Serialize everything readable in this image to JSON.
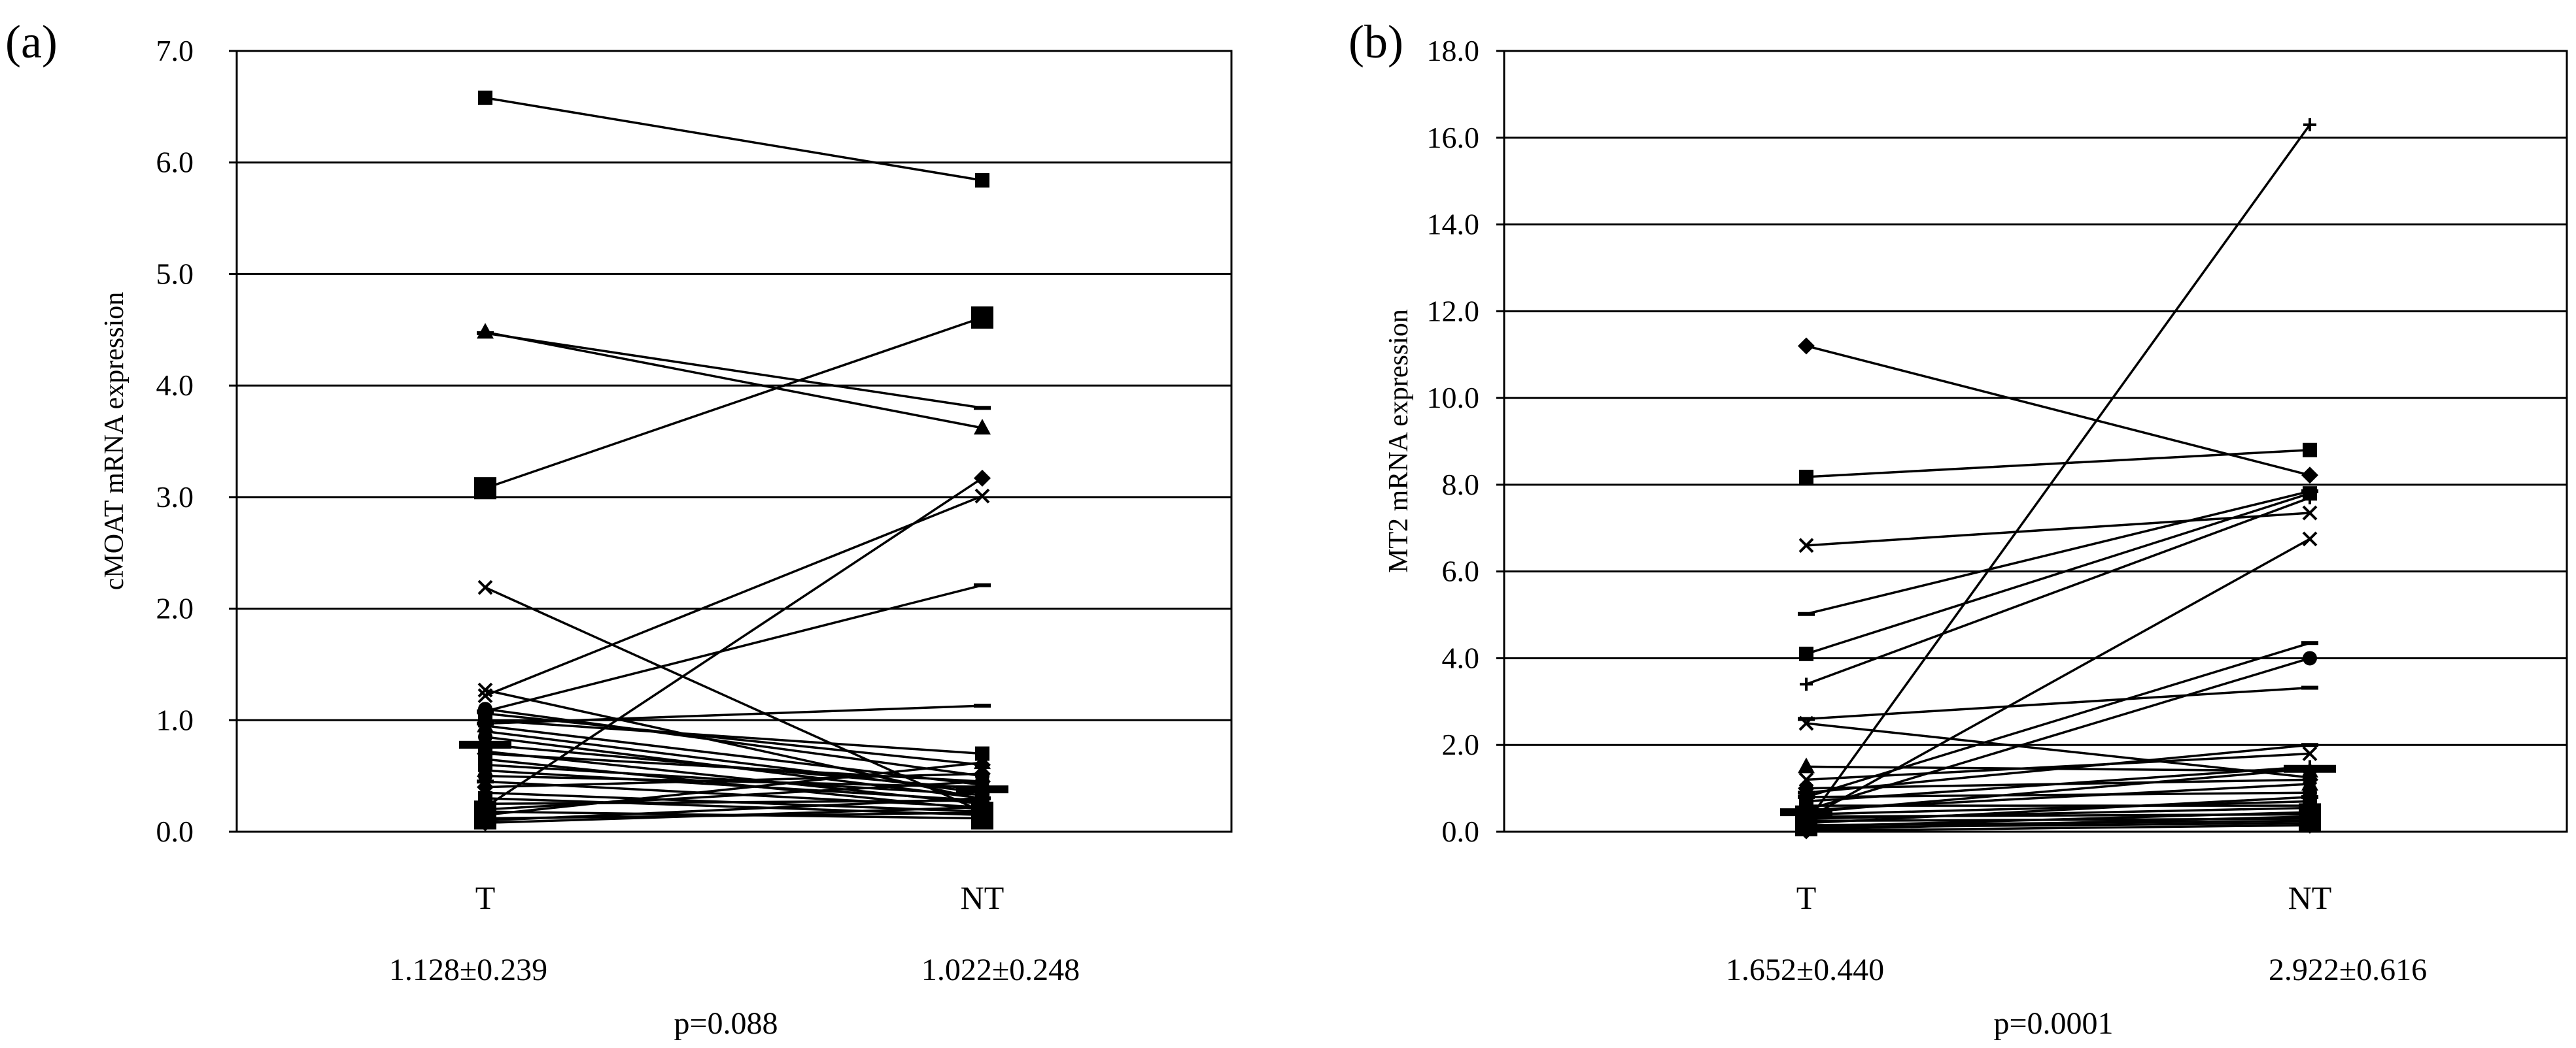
{
  "chart_data": [
    {
      "type": "line",
      "panel_label": "(a)",
      "ylabel": "cMOAT mRNA expression",
      "categories": [
        "T",
        "NT"
      ],
      "ylim": [
        0,
        7
      ],
      "yticks": [
        "0.0",
        "1.0",
        "2.0",
        "3.0",
        "4.0",
        "5.0",
        "6.0",
        "7.0"
      ],
      "grid": true,
      "stats": [
        "1.128±0.239",
        "1.022±0.248"
      ],
      "pvalue": "p=0.088",
      "series": [
        {
          "values": [
            6.58,
            5.84
          ],
          "marker": "square"
        },
        {
          "values": [
            4.47,
            3.8
          ],
          "marker": "dash"
        },
        {
          "values": [
            4.48,
            3.62
          ],
          "marker": "triangle"
        },
        {
          "values": [
            3.08,
            4.61
          ],
          "marker": "bigsquare"
        },
        {
          "values": [
            0.22,
            3.17
          ],
          "marker": "diamond"
        },
        {
          "values": [
            1.22,
            3.01
          ],
          "marker": "x"
        },
        {
          "values": [
            1.08,
            2.21
          ],
          "marker": "dash"
        },
        {
          "values": [
            2.19,
            0.18
          ],
          "marker": "x"
        },
        {
          "values": [
            0.97,
            1.13
          ],
          "marker": "dash"
        },
        {
          "values": [
            1.27,
            0.29
          ],
          "marker": "x"
        },
        {
          "values": [
            1.1,
            0.5
          ],
          "marker": "circle"
        },
        {
          "values": [
            1.06,
            0.6
          ],
          "marker": "diamond"
        },
        {
          "values": [
            1.0,
            0.7
          ],
          "marker": "square"
        },
        {
          "values": [
            0.95,
            0.42
          ],
          "marker": "triangle"
        },
        {
          "values": [
            0.9,
            0.35
          ],
          "marker": "plus"
        },
        {
          "values": [
            0.85,
            0.3
          ],
          "marker": "circle"
        },
        {
          "values": [
            0.78,
            0.38
          ],
          "marker": "bigdash"
        },
        {
          "values": [
            0.72,
            0.25
          ],
          "marker": "square"
        },
        {
          "values": [
            0.7,
            0.45
          ],
          "marker": "diamond"
        },
        {
          "values": [
            0.65,
            0.2
          ],
          "marker": "x"
        },
        {
          "values": [
            0.6,
            0.33
          ],
          "marker": "square"
        },
        {
          "values": [
            0.55,
            0.28
          ],
          "marker": "triangle"
        },
        {
          "values": [
            0.5,
            0.4
          ],
          "marker": "circle"
        },
        {
          "values": [
            0.45,
            0.22
          ],
          "marker": "dash"
        },
        {
          "values": [
            0.4,
            0.52
          ],
          "marker": "diamond"
        },
        {
          "values": [
            0.35,
            0.18
          ],
          "marker": "plus"
        },
        {
          "values": [
            0.3,
            0.15
          ],
          "marker": "square"
        },
        {
          "values": [
            0.25,
            0.28
          ],
          "marker": "x"
        },
        {
          "values": [
            0.2,
            0.45
          ],
          "marker": "circle"
        },
        {
          "values": [
            0.18,
            0.12
          ],
          "marker": "bigsquare"
        },
        {
          "values": [
            0.15,
            0.62
          ],
          "marker": "triangle"
        },
        {
          "values": [
            0.12,
            0.17
          ],
          "marker": "bigsquare"
        },
        {
          "values": [
            0.1,
            0.3
          ],
          "marker": "dash"
        },
        {
          "values": [
            0.08,
            0.22
          ],
          "marker": "diamond"
        }
      ]
    },
    {
      "type": "line",
      "panel_label": "(b)",
      "ylabel": "MT2 mRNA expression",
      "categories": [
        "T",
        "NT"
      ],
      "ylim": [
        0,
        18
      ],
      "yticks": [
        "0.0",
        "2.0",
        "4.0",
        "6.0",
        "8.0",
        "10.0",
        "12.0",
        "14.0",
        "16.0",
        "18.0"
      ],
      "grid": true,
      "stats": [
        "1.652±0.440",
        "2.922±0.616"
      ],
      "pvalue": "p=0.0001",
      "series": [
        {
          "values": [
            0.2,
            16.3
          ],
          "marker": "plus"
        },
        {
          "values": [
            11.2,
            8.22
          ],
          "marker": "diamond"
        },
        {
          "values": [
            8.18,
            8.8
          ],
          "marker": "square"
        },
        {
          "values": [
            6.6,
            7.35
          ],
          "marker": "x"
        },
        {
          "values": [
            5.02,
            7.85
          ],
          "marker": "dash"
        },
        {
          "values": [
            4.1,
            7.8
          ],
          "marker": "square"
        },
        {
          "values": [
            3.4,
            7.7
          ],
          "marker": "plus"
        },
        {
          "values": [
            0.3,
            6.75
          ],
          "marker": "x"
        },
        {
          "values": [
            0.8,
            4.35
          ],
          "marker": "dash"
        },
        {
          "values": [
            0.5,
            4.0
          ],
          "marker": "circle"
        },
        {
          "values": [
            2.6,
            3.32
          ],
          "marker": "dash"
        },
        {
          "values": [
            2.5,
            1.25
          ],
          "marker": "x"
        },
        {
          "values": [
            1.5,
            1.4
          ],
          "marker": "triangle"
        },
        {
          "values": [
            1.2,
            1.8
          ],
          "marker": "x"
        },
        {
          "values": [
            1.0,
            1.2
          ],
          "marker": "diamond"
        },
        {
          "values": [
            0.9,
            2.0
          ],
          "marker": "dash"
        },
        {
          "values": [
            0.8,
            0.9
          ],
          "marker": "circle"
        },
        {
          "values": [
            0.7,
            1.5
          ],
          "marker": "plus"
        },
        {
          "values": [
            0.6,
            0.6
          ],
          "marker": "square"
        },
        {
          "values": [
            0.5,
            1.1
          ],
          "marker": "triangle"
        },
        {
          "values": [
            0.45,
            1.45
          ],
          "marker": "bigdash"
        },
        {
          "values": [
            0.4,
            0.7
          ],
          "marker": "x"
        },
        {
          "values": [
            0.35,
            0.4
          ],
          "marker": "bigsquare"
        },
        {
          "values": [
            0.3,
            0.55
          ],
          "marker": "diamond"
        },
        {
          "values": [
            0.25,
            0.3
          ],
          "marker": "circle"
        },
        {
          "values": [
            0.2,
            0.8
          ],
          "marker": "dash"
        },
        {
          "values": [
            0.15,
            0.25
          ],
          "marker": "bigsquare"
        },
        {
          "values": [
            0.12,
            0.45
          ],
          "marker": "triangle"
        },
        {
          "values": [
            0.1,
            0.2
          ],
          "marker": "square"
        },
        {
          "values": [
            0.05,
            0.35
          ],
          "marker": "plus"
        },
        {
          "values": [
            0.02,
            0.15
          ],
          "marker": "diamond"
        }
      ]
    }
  ]
}
